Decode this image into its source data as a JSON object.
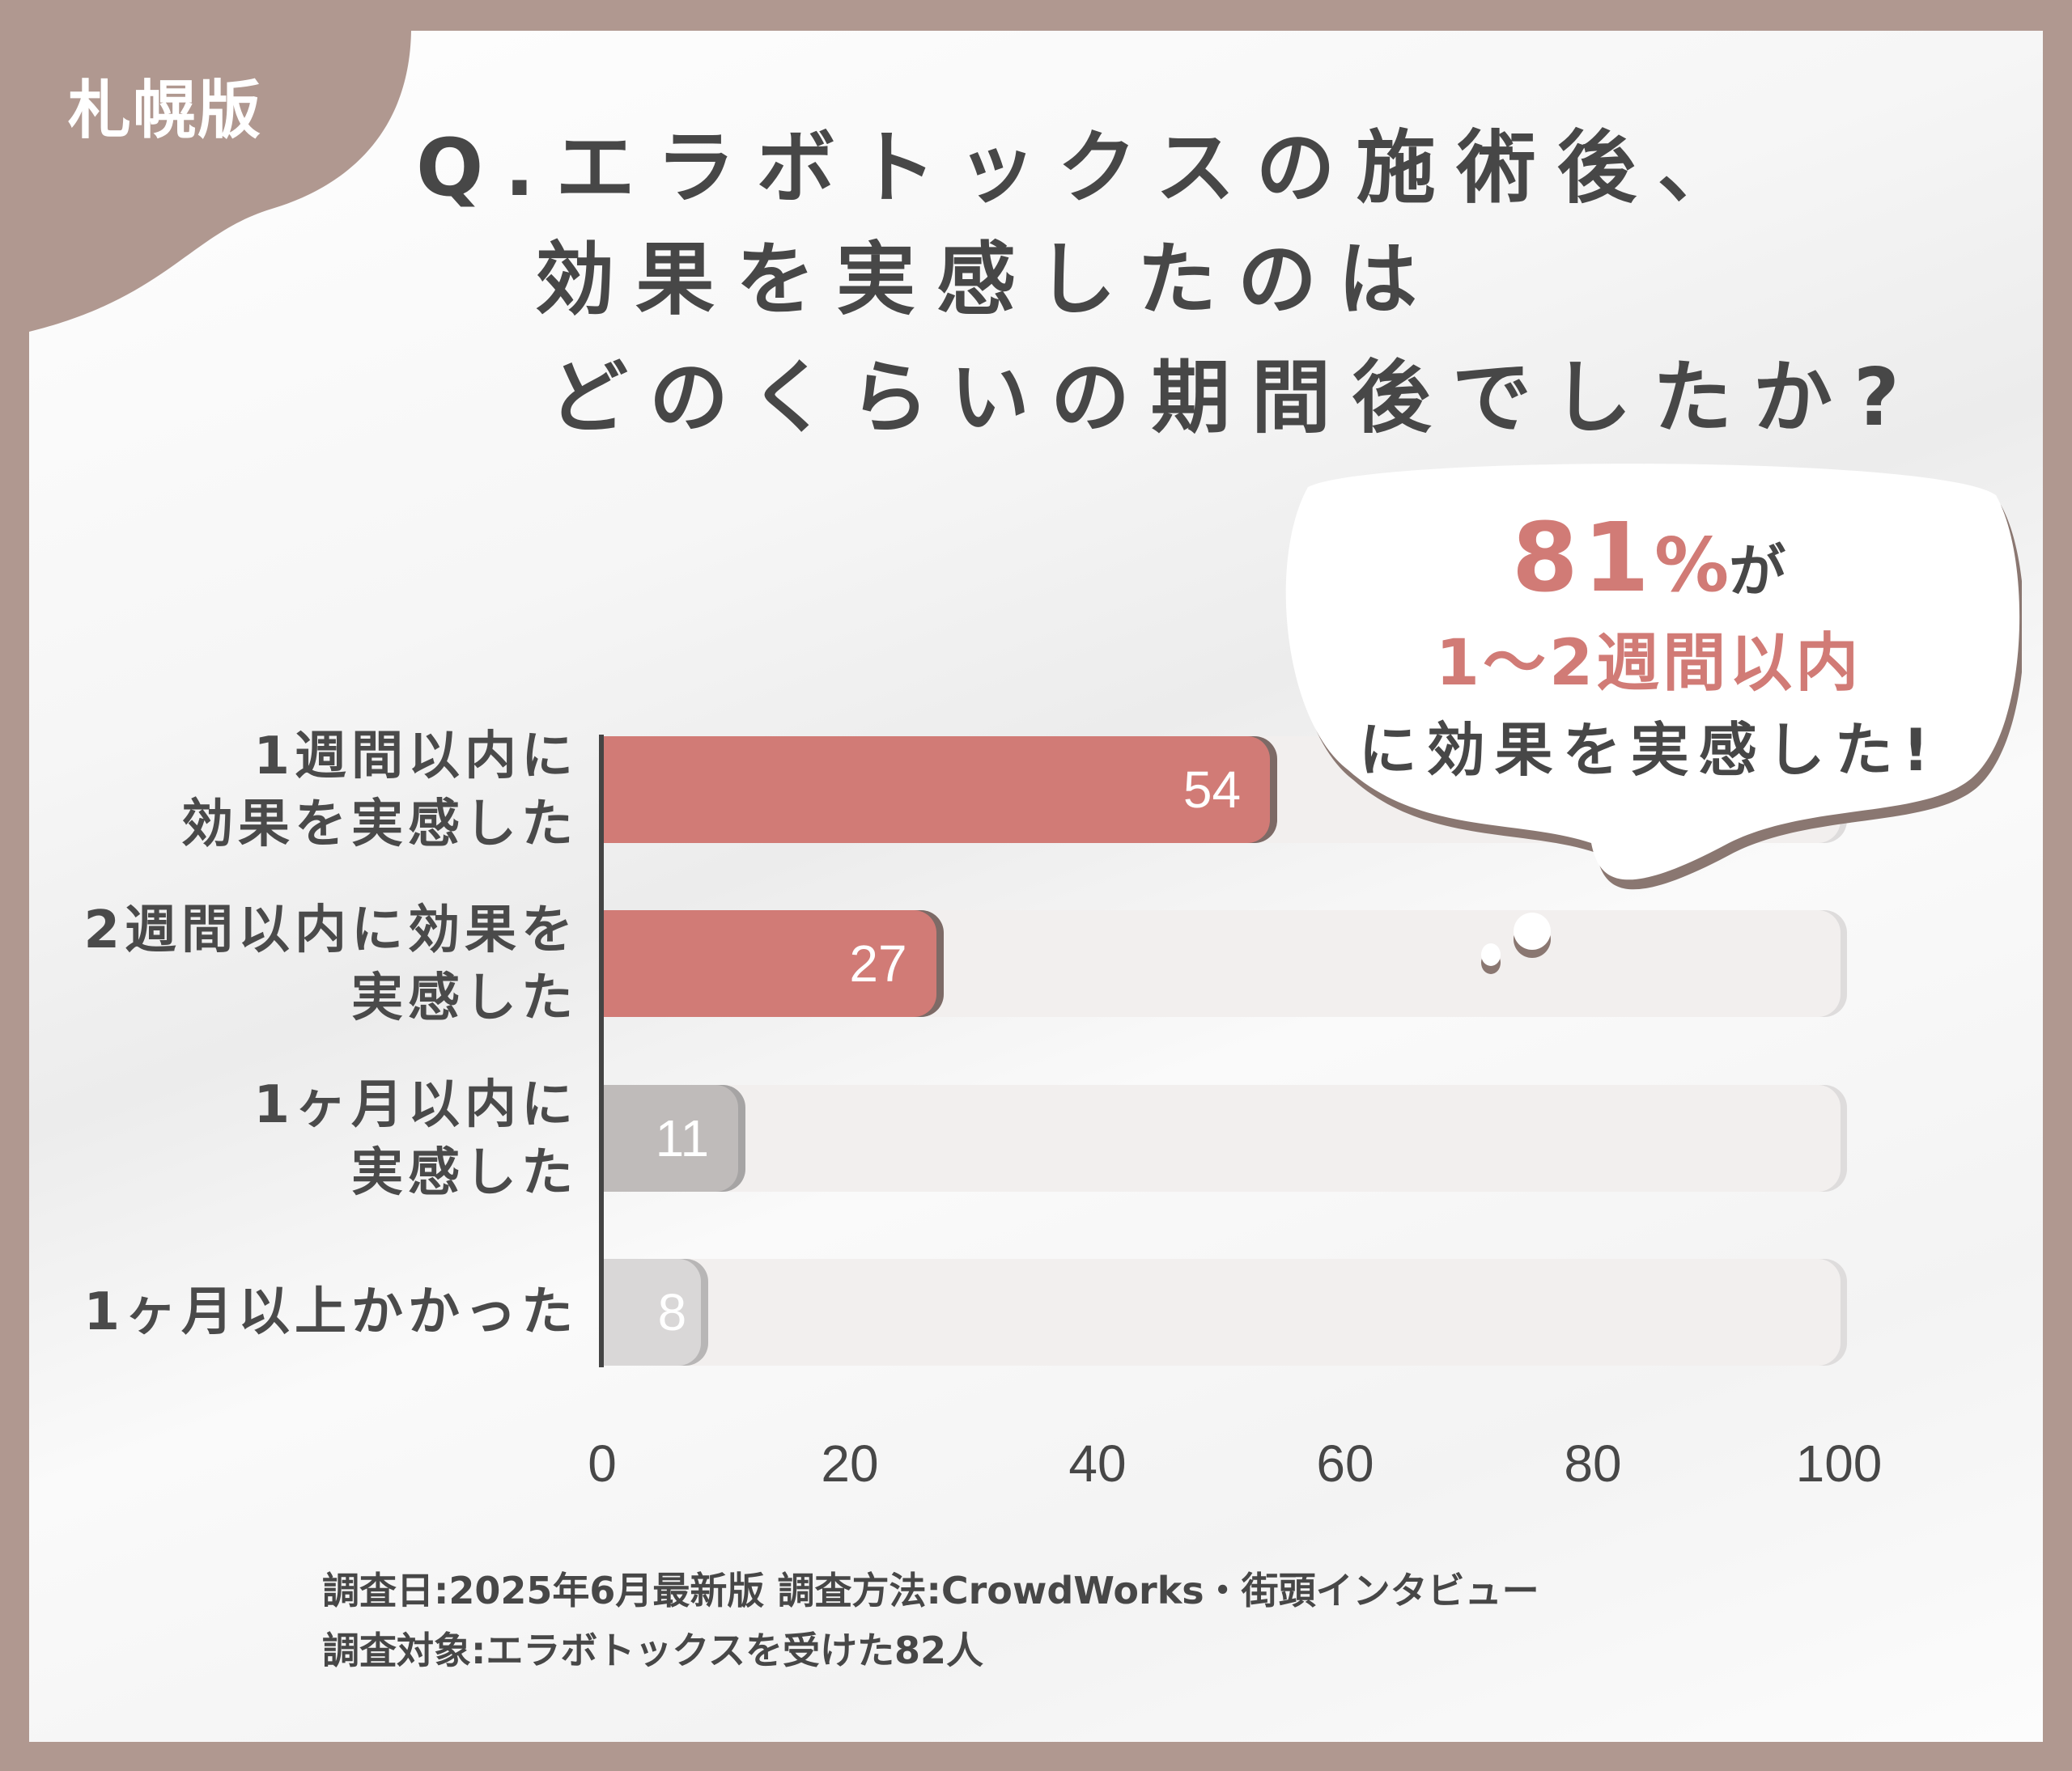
{
  "badge": "札幌版",
  "title": {
    "line1": "Q.エラボトックスの施術後、",
    "line2": "効果を実感したのは",
    "line3": "どのくらいの期間後でしたか?"
  },
  "callout": {
    "percent": "81",
    "percent_unit": "%",
    "particle": "が",
    "period": "1〜2週間以内",
    "rest": "に効果を実感した!"
  },
  "colors": {
    "frame": "#b09890",
    "highlight": "#d17b76",
    "text": "#474747",
    "bar_gray": "#bfbbba",
    "bar_light_gray": "#d9d7d7",
    "track": "#f2efee"
  },
  "footer": {
    "line1": "調査日:2025年6月最新版  調査方法:CrowdWorks・街頭インタビュー",
    "line2": "調査対象:エラボトックスを受けた82人"
  },
  "chart_data": {
    "type": "bar",
    "orientation": "horizontal",
    "title": "Q.エラボトックスの施術後、効果を実感したのはどのくらいの期間後でしたか?",
    "categories": [
      "1週間以内に効果を実感した",
      "2週間以内に効果を実感した",
      "1ヶ月以内に実感した",
      "1ヶ月以上かかった"
    ],
    "category_lines": [
      [
        "1週間以内に",
        "効果を実感した"
      ],
      [
        "2週間以内に効果を",
        "実感した"
      ],
      [
        "1ヶ月以内に",
        "実感した"
      ],
      [
        "1ヶ月以上かかった"
      ]
    ],
    "values": [
      54,
      27,
      11,
      8
    ],
    "value_labels": [
      "54",
      "27",
      "11",
      "8"
    ],
    "xlim": [
      0,
      100
    ],
    "xticks": [
      "0",
      "20",
      "40",
      "60",
      "80",
      "100"
    ],
    "xlabel": "",
    "ylabel": "",
    "grid": false,
    "legend": null,
    "annotation": "81%が1〜2週間以内に効果を実感した!"
  }
}
